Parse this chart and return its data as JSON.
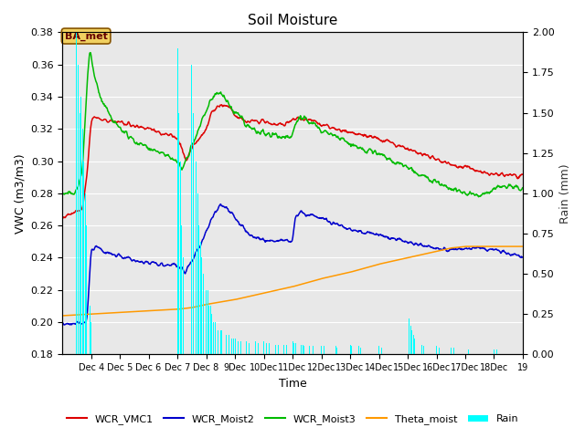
{
  "title": "Soil Moisture",
  "xlabel": "Time",
  "ylabel_left": "VWC (m3/m3)",
  "ylabel_right": "Rain (mm)",
  "ylim_left": [
    0.18,
    0.38
  ],
  "ylim_right": [
    0.0,
    2.0
  ],
  "xlim": [
    3.0,
    19.0
  ],
  "annotation_text": "BA_met",
  "background_color": "#e8e8e8",
  "grid_color": "#ffffff",
  "line_colors": [
    "#dd0000",
    "#0000cc",
    "#00bb00",
    "#ff9900",
    "#00cccc"
  ],
  "x_ticks_pos": [
    4,
    5,
    6,
    7,
    8,
    9,
    10,
    11,
    12,
    13,
    14,
    15,
    16,
    17,
    18,
    19
  ],
  "x_ticks_labels": [
    "Dec 4",
    "Dec 5",
    "Dec 6",
    "Dec 7",
    "Dec 8",
    "9Dec",
    "10Dec",
    "11Dec",
    "12Dec",
    "13Dec",
    "14Dec",
    "15Dec",
    "16Dec",
    "17Dec",
    "18Dec",
    "19"
  ]
}
